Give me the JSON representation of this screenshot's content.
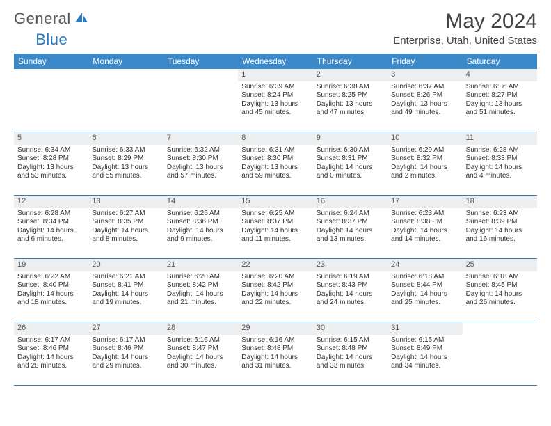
{
  "brand": {
    "part1": "General",
    "part2": "Blue"
  },
  "title": "May 2024",
  "location": "Enterprise, Utah, United States",
  "colors": {
    "header_bar": "#3b89c9",
    "accent_line": "#2f79bd",
    "daynum_bg": "#eceef0",
    "text": "#333333",
    "muted": "#555555",
    "white": "#ffffff"
  },
  "fonts": {
    "title_size": 30,
    "location_size": 15,
    "dow_size": 12,
    "day_size": 10
  },
  "days_of_week": [
    "Sunday",
    "Monday",
    "Tuesday",
    "Wednesday",
    "Thursday",
    "Friday",
    "Saturday"
  ],
  "labels": {
    "sunrise": "Sunrise:",
    "sunset": "Sunset:",
    "daylight": "Daylight:"
  },
  "weeks": [
    [
      {
        "n": "",
        "empty": true
      },
      {
        "n": "",
        "empty": true
      },
      {
        "n": "",
        "empty": true
      },
      {
        "n": "1",
        "sunrise": "6:39 AM",
        "sunset": "8:24 PM",
        "daylight": "13 hours and 45 minutes."
      },
      {
        "n": "2",
        "sunrise": "6:38 AM",
        "sunset": "8:25 PM",
        "daylight": "13 hours and 47 minutes."
      },
      {
        "n": "3",
        "sunrise": "6:37 AM",
        "sunset": "8:26 PM",
        "daylight": "13 hours and 49 minutes."
      },
      {
        "n": "4",
        "sunrise": "6:36 AM",
        "sunset": "8:27 PM",
        "daylight": "13 hours and 51 minutes."
      }
    ],
    [
      {
        "n": "5",
        "sunrise": "6:34 AM",
        "sunset": "8:28 PM",
        "daylight": "13 hours and 53 minutes."
      },
      {
        "n": "6",
        "sunrise": "6:33 AM",
        "sunset": "8:29 PM",
        "daylight": "13 hours and 55 minutes."
      },
      {
        "n": "7",
        "sunrise": "6:32 AM",
        "sunset": "8:30 PM",
        "daylight": "13 hours and 57 minutes."
      },
      {
        "n": "8",
        "sunrise": "6:31 AM",
        "sunset": "8:30 PM",
        "daylight": "13 hours and 59 minutes."
      },
      {
        "n": "9",
        "sunrise": "6:30 AM",
        "sunset": "8:31 PM",
        "daylight": "14 hours and 0 minutes."
      },
      {
        "n": "10",
        "sunrise": "6:29 AM",
        "sunset": "8:32 PM",
        "daylight": "14 hours and 2 minutes."
      },
      {
        "n": "11",
        "sunrise": "6:28 AM",
        "sunset": "8:33 PM",
        "daylight": "14 hours and 4 minutes."
      }
    ],
    [
      {
        "n": "12",
        "sunrise": "6:28 AM",
        "sunset": "8:34 PM",
        "daylight": "14 hours and 6 minutes."
      },
      {
        "n": "13",
        "sunrise": "6:27 AM",
        "sunset": "8:35 PM",
        "daylight": "14 hours and 8 minutes."
      },
      {
        "n": "14",
        "sunrise": "6:26 AM",
        "sunset": "8:36 PM",
        "daylight": "14 hours and 9 minutes."
      },
      {
        "n": "15",
        "sunrise": "6:25 AM",
        "sunset": "8:37 PM",
        "daylight": "14 hours and 11 minutes."
      },
      {
        "n": "16",
        "sunrise": "6:24 AM",
        "sunset": "8:37 PM",
        "daylight": "14 hours and 13 minutes."
      },
      {
        "n": "17",
        "sunrise": "6:23 AM",
        "sunset": "8:38 PM",
        "daylight": "14 hours and 14 minutes."
      },
      {
        "n": "18",
        "sunrise": "6:23 AM",
        "sunset": "8:39 PM",
        "daylight": "14 hours and 16 minutes."
      }
    ],
    [
      {
        "n": "19",
        "sunrise": "6:22 AM",
        "sunset": "8:40 PM",
        "daylight": "14 hours and 18 minutes."
      },
      {
        "n": "20",
        "sunrise": "6:21 AM",
        "sunset": "8:41 PM",
        "daylight": "14 hours and 19 minutes."
      },
      {
        "n": "21",
        "sunrise": "6:20 AM",
        "sunset": "8:42 PM",
        "daylight": "14 hours and 21 minutes."
      },
      {
        "n": "22",
        "sunrise": "6:20 AM",
        "sunset": "8:42 PM",
        "daylight": "14 hours and 22 minutes."
      },
      {
        "n": "23",
        "sunrise": "6:19 AM",
        "sunset": "8:43 PM",
        "daylight": "14 hours and 24 minutes."
      },
      {
        "n": "24",
        "sunrise": "6:18 AM",
        "sunset": "8:44 PM",
        "daylight": "14 hours and 25 minutes."
      },
      {
        "n": "25",
        "sunrise": "6:18 AM",
        "sunset": "8:45 PM",
        "daylight": "14 hours and 26 minutes."
      }
    ],
    [
      {
        "n": "26",
        "sunrise": "6:17 AM",
        "sunset": "8:46 PM",
        "daylight": "14 hours and 28 minutes."
      },
      {
        "n": "27",
        "sunrise": "6:17 AM",
        "sunset": "8:46 PM",
        "daylight": "14 hours and 29 minutes."
      },
      {
        "n": "28",
        "sunrise": "6:16 AM",
        "sunset": "8:47 PM",
        "daylight": "14 hours and 30 minutes."
      },
      {
        "n": "29",
        "sunrise": "6:16 AM",
        "sunset": "8:48 PM",
        "daylight": "14 hours and 31 minutes."
      },
      {
        "n": "30",
        "sunrise": "6:15 AM",
        "sunset": "8:48 PM",
        "daylight": "14 hours and 33 minutes."
      },
      {
        "n": "31",
        "sunrise": "6:15 AM",
        "sunset": "8:49 PM",
        "daylight": "14 hours and 34 minutes."
      },
      {
        "n": "",
        "empty": true
      }
    ]
  ]
}
